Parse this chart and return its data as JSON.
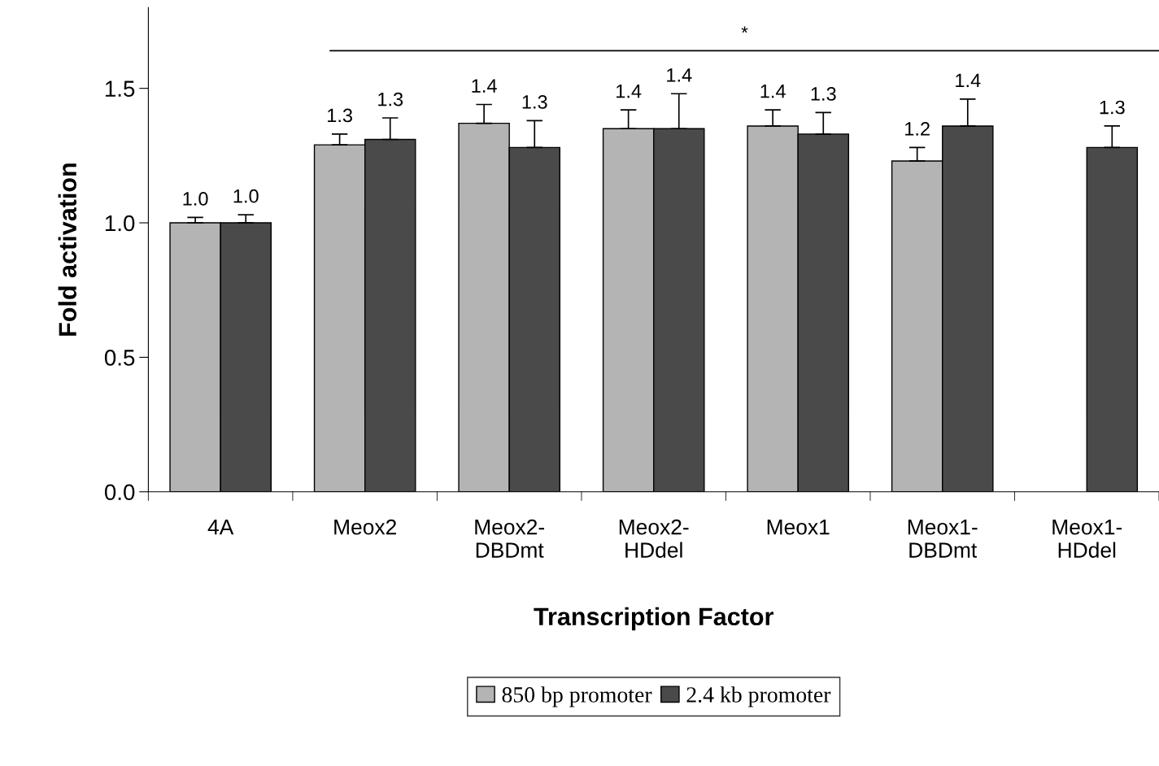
{
  "chart_data": {
    "type": "bar",
    "xlabel": "Transcription Factor",
    "ylabel": "Fold activation",
    "categories": [
      "4A",
      "Meox2",
      "Meox2-\nDBDmt",
      "Meox2-\nHDdel",
      "Meox1",
      "Meox1-\nDBDmt",
      "Meox1-\nHDdel"
    ],
    "series": [
      {
        "name": "850 bp promoter",
        "color": "#b4b4b4",
        "values": [
          1.0,
          1.29,
          1.37,
          1.35,
          1.36,
          1.23,
          null
        ],
        "errors": [
          0.02,
          0.04,
          0.07,
          0.07,
          0.06,
          0.05,
          null
        ],
        "value_labels": [
          "1.0",
          "1.3",
          "1.4",
          "1.4",
          "1.4",
          "1.2",
          null
        ]
      },
      {
        "name": "2.4 kb promoter",
        "color": "#4a4a4a",
        "values": [
          1.0,
          1.31,
          1.28,
          1.35,
          1.33,
          1.36,
          1.28
        ],
        "errors": [
          0.03,
          0.08,
          0.1,
          0.13,
          0.08,
          0.1,
          0.08
        ],
        "value_labels": [
          "1.0",
          "1.3",
          "1.3",
          "1.4",
          "1.3",
          "1.4",
          "1.3"
        ]
      }
    ],
    "ylim": [
      0,
      1.8
    ],
    "yticks": [
      {
        "value": 0,
        "label": "0.0"
      },
      {
        "value": 0.5,
        "label": "0.5"
      },
      {
        "value": 1.0,
        "label": "1.0"
      },
      {
        "value": 1.5,
        "label": "1.5"
      }
    ],
    "ref_lines": [
      {
        "axis": "y",
        "value": 1.64,
        "label": "*",
        "color": "#000000"
      }
    ],
    "grid": false,
    "legend": "bottom"
  }
}
